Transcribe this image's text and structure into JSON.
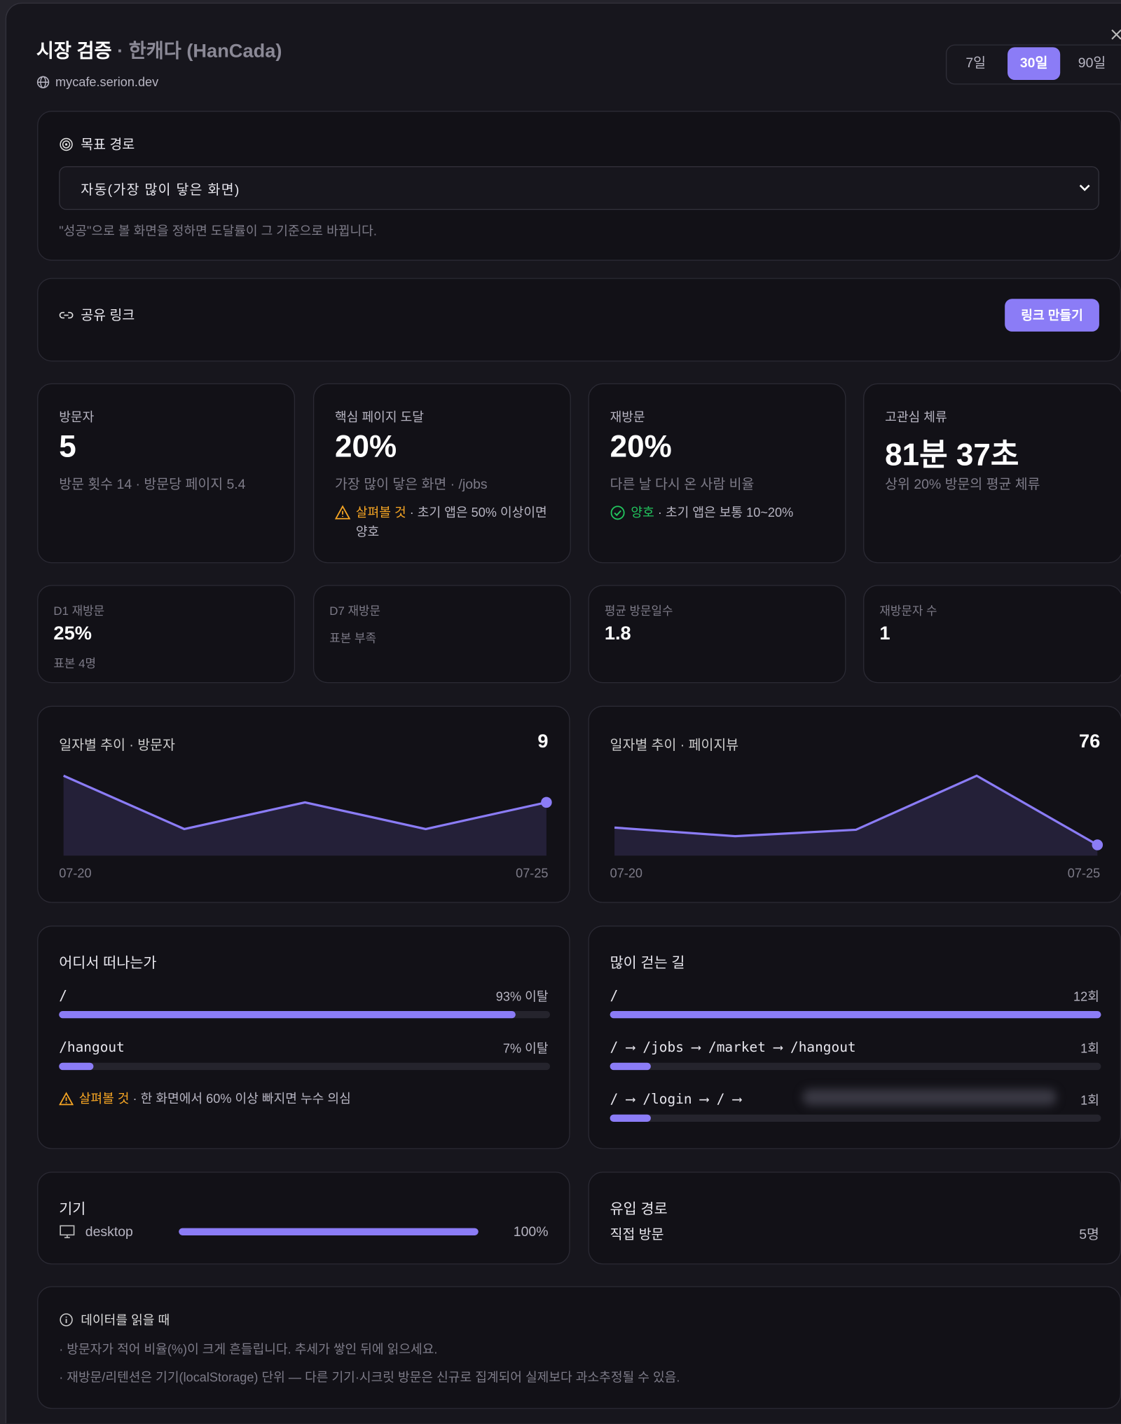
{
  "header": {
    "title": "시장 검증",
    "subtitle": "· 한캐다 (HanCada)",
    "domain": "mycafe.serion.dev",
    "ranges": [
      "7일",
      "30일",
      "90일"
    ],
    "active_range": 1
  },
  "goal": {
    "title": "목표 경로",
    "select": "자동(가장 많이 닿은 화면)",
    "hint": "\"성공\"으로 볼 화면을 정하면 도달률이 그 기준으로 바뀝니다."
  },
  "share": {
    "title": "공유 링크",
    "button": "링크 만들기"
  },
  "kpis": [
    {
      "label": "방문자",
      "value": "5",
      "sub": "방문 횟수 14 · 방문당 페이지 5.4"
    },
    {
      "label": "핵심 페이지 도달",
      "value": "20%",
      "sub": "가장 많이 닿은 화면 · /jobs",
      "status": "살펴볼 것",
      "status_kind": "warn",
      "note": " · 초기 앱은 50% 이상이면 양호"
    },
    {
      "label": "재방문",
      "value": "20%",
      "sub": "다른 날 다시 온 사람 비율",
      "status": "양호",
      "status_kind": "good",
      "note": " · 초기 앱은 보통 10~20%"
    },
    {
      "label": "고관심 체류",
      "value": "81분 37초",
      "sub": "상위 20% 방문의 평균 체류"
    }
  ],
  "small_kpis": [
    {
      "label": "D1 재방문",
      "value": "25%",
      "sub": "표본 4명"
    },
    {
      "label": "D7 재방문",
      "sub": "표본 부족"
    },
    {
      "label": "평균 방문일수",
      "value": "1.8"
    },
    {
      "label": "재방문자 수",
      "value": "1"
    }
  ],
  "charts": [
    {
      "type": "line",
      "title": "일자별 추이 · 방문자",
      "headline": "9",
      "x_labels": [
        "07-20",
        "07-25"
      ],
      "values": [
        3,
        1,
        2,
        1,
        2
      ],
      "color": "#8b7cf6"
    },
    {
      "type": "line",
      "title": "일자별 추이 · 페이지뷰",
      "headline": "76",
      "x_labels": [
        "07-20",
        "07-25"
      ],
      "values": [
        13,
        9,
        12,
        37,
        5
      ],
      "color": "#8b7cf6"
    }
  ],
  "exits": {
    "title": "어디서 떠나는가",
    "max": 100,
    "rows": [
      {
        "path": "/",
        "value": 93,
        "label": "93% 이탈"
      },
      {
        "path": "/hangout",
        "value": 7,
        "label": "7% 이탈"
      }
    ],
    "status": "살펴볼 것",
    "note": " · 한 화면에서 60% 이상 빠지면 누수 의심"
  },
  "paths": {
    "title": "많이 걷는 길",
    "max": 12,
    "rows": [
      {
        "path": "/",
        "value": 12,
        "label": "12회"
      },
      {
        "path": "/ ⟶ /jobs ⟶ /market ⟶ /hangout",
        "value": 1,
        "label": "1회"
      },
      {
        "path": "/ ⟶ /login ⟶ / ⟶",
        "value": 1,
        "label": "1회"
      }
    ]
  },
  "devices": {
    "title": "기기",
    "max": 100,
    "rows": [
      {
        "name": "desktop",
        "value": 100,
        "label": "100%"
      }
    ]
  },
  "sources": {
    "title": "유입 경로",
    "rows": [
      {
        "name": "직접 방문",
        "count": "5명"
      }
    ]
  },
  "notes": {
    "title": "데이터를 읽을 때",
    "items": [
      "· 방문자가 적어 비율(%)이 크게 흔들립니다. 추세가 쌓인 뒤에 읽으세요.",
      "· 재방문/리텐션은 기기(localStorage) 단위 — 다른 기기·시크릿 방문은 신규로 집계되어 실제보다 과소추정될 수 있음."
    ]
  }
}
